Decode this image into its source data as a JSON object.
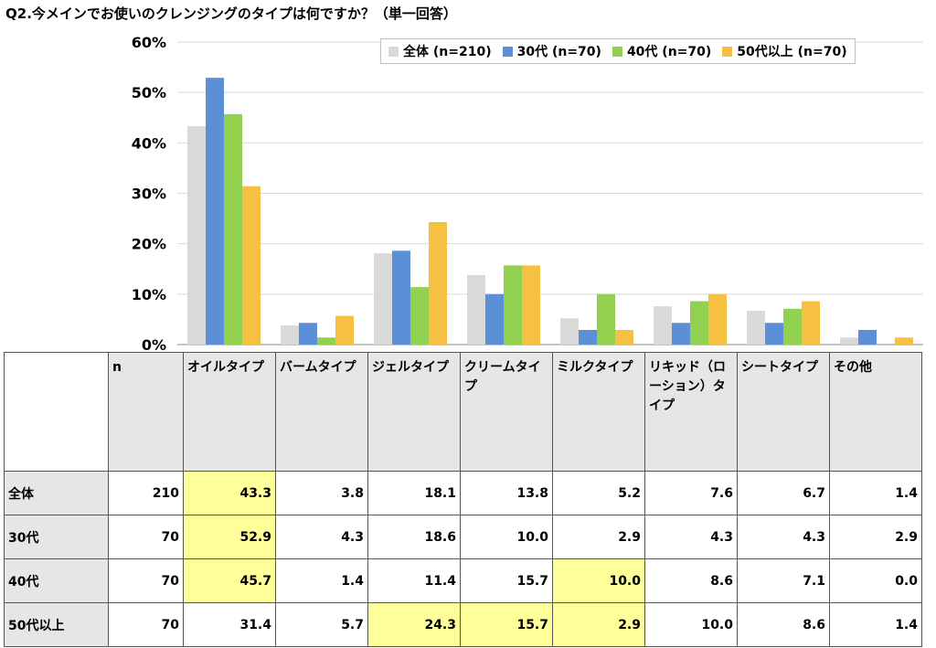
{
  "title": "Q2.今メインでお使いのクレンジングのタイプは何ですか？（単一回答）",
  "chart_data": {
    "type": "bar",
    "categories": [
      "オイルタイプ",
      "バームタイプ",
      "ジェルタイプ",
      "クリームタイプ",
      "ミルクタイプ",
      "リキッド（ローション）タイプ",
      "シートタイプ",
      "その他"
    ],
    "ylim": [
      0,
      60
    ],
    "yticks": [
      "0%",
      "10%",
      "20%",
      "30%",
      "40%",
      "50%",
      "60%"
    ],
    "grid": true,
    "legend_position": "top-right",
    "series": [
      {
        "name": "全体 (n=210)",
        "color": "#d9d9d9",
        "values": [
          43.3,
          3.8,
          18.1,
          13.8,
          5.2,
          7.6,
          6.7,
          1.4
        ]
      },
      {
        "name": "30代 (n=70)",
        "color": "#5b8fd6",
        "values": [
          52.9,
          4.3,
          18.6,
          10.0,
          2.9,
          4.3,
          4.3,
          2.9
        ]
      },
      {
        "name": "40代 (n=70)",
        "color": "#92d050",
        "values": [
          45.7,
          1.4,
          11.4,
          15.7,
          10.0,
          8.6,
          7.1,
          0.0
        ]
      },
      {
        "name": "50代以上 (n=70)",
        "color": "#f6c142",
        "values": [
          31.4,
          5.7,
          24.3,
          15.7,
          2.9,
          10.0,
          8.6,
          1.4
        ]
      }
    ]
  },
  "table": {
    "n_header": "n",
    "columns": [
      "オイルタイプ",
      "バームタイプ",
      "ジェルタイプ",
      "クリームタイプ",
      "ミルクタイプ",
      "リキッド（ローション）タイプ",
      "シートタイプ",
      "その他"
    ],
    "rows": [
      {
        "label": "全体",
        "n": "210",
        "values": [
          "43.3",
          "3.8",
          "18.1",
          "13.8",
          "5.2",
          "7.6",
          "6.7",
          "1.4"
        ]
      },
      {
        "label": "30代",
        "n": "70",
        "values": [
          "52.9",
          "4.3",
          "18.6",
          "10.0",
          "2.9",
          "4.3",
          "4.3",
          "2.9"
        ]
      },
      {
        "label": "40代",
        "n": "70",
        "values": [
          "45.7",
          "1.4",
          "11.4",
          "15.7",
          "10.0",
          "8.6",
          "7.1",
          "0.0"
        ]
      },
      {
        "label": "50代以上",
        "n": "70",
        "values": [
          "31.4",
          "5.7",
          "24.3",
          "15.7",
          "2.9",
          "10.0",
          "8.6",
          "1.4"
        ]
      }
    ],
    "highlight_color": "#ffff99",
    "highlights": [
      [
        true,
        false,
        false,
        false,
        false,
        false,
        false,
        false
      ],
      [
        true,
        false,
        false,
        false,
        false,
        false,
        false,
        false
      ],
      [
        true,
        false,
        false,
        false,
        true,
        false,
        false,
        false
      ],
      [
        false,
        false,
        true,
        true,
        true,
        false,
        false,
        false
      ]
    ]
  }
}
